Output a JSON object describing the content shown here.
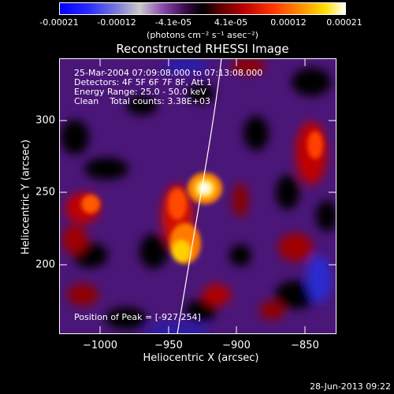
{
  "colorbar": {
    "ticks": [
      "-0.00021",
      "-0.00012",
      "-4.1e-05",
      "4.1e-05",
      "0.00012",
      "0.00021"
    ],
    "unit": "(photons cm⁻² s⁻¹ asec⁻²)"
  },
  "title": "Reconstructed RHESSI Image",
  "info": {
    "line1": "25-Mar-2004 07:09:08.000 to 07:13:08.000",
    "line2": "Detectors: 4F 5F 6F 7F 8F, Att 1",
    "line3": "Energy Range: 25.0 - 50.0 keV",
    "line4": "Clean    Total counts: 3.38E+03"
  },
  "peak_label": "Position of Peak = [-927,254]",
  "x_ticks": [
    "−1000",
    "−950",
    "−900",
    "−850"
  ],
  "y_ticks": [
    "300",
    "250",
    "200"
  ],
  "xlabel": "Heliocentric X (arcsec)",
  "ylabel": "Heliocentric Y (arcsec)",
  "timestamp": "28-Jun-2013 09:22"
}
